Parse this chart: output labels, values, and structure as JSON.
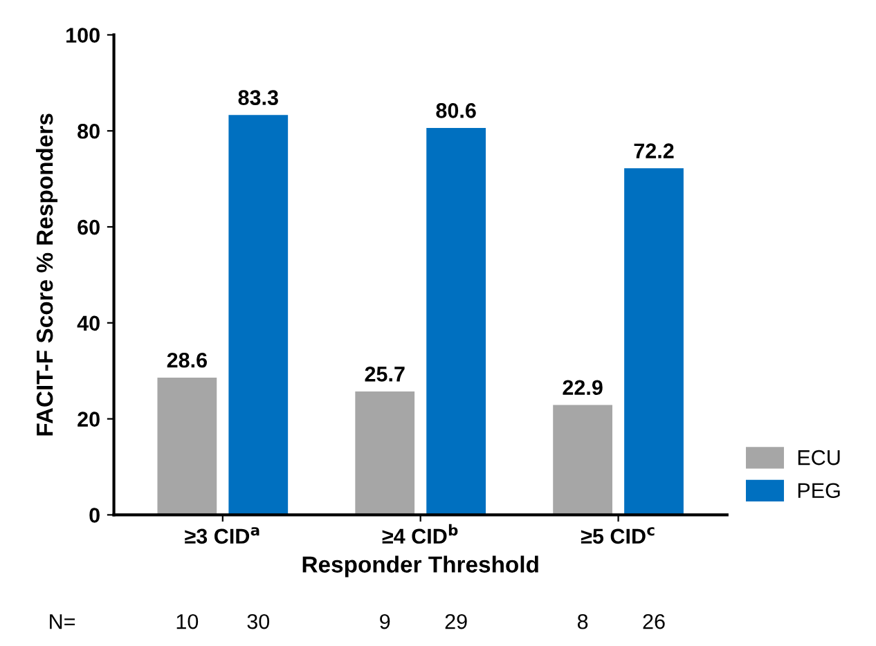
{
  "chart_data": {
    "type": "bar",
    "xlabel": "Responder Threshold",
    "ylabel": "FACIT-F Score % Responders",
    "categories": [
      "≥3 CID$^{a}$",
      "≥4 CID$^{b}$",
      "≥5 CID$^{c}$"
    ],
    "series": [
      {
        "name": "ECU",
        "color": "#a6a6a6",
        "values": [
          28.6,
          25.7,
          22.9
        ]
      },
      {
        "name": "PEG",
        "color": "#0070c0",
        "values": [
          83.3,
          80.6,
          72.2
        ]
      }
    ],
    "ylim": [
      0,
      100
    ],
    "yticks": [
      0,
      20,
      40,
      60,
      80,
      100
    ],
    "grid": false,
    "legend": "bottom right",
    "data_labels": true,
    "annotations": [
      "N=",
      "10",
      "30",
      "9",
      "29",
      "8",
      "26"
    ]
  }
}
